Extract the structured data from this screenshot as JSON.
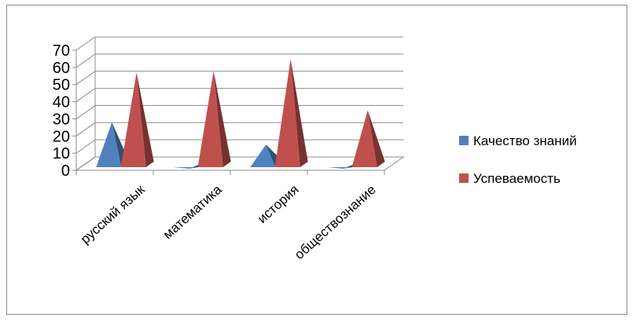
{
  "chart_data": {
    "type": "bar",
    "subtype": "3d-pyramid",
    "categories": [
      "русский язык",
      "математика",
      "история",
      "обществознание"
    ],
    "series": [
      {
        "name": "Качество знаний",
        "values": [
          28,
          1,
          15,
          1
        ],
        "color": "#4f81bd"
      },
      {
        "name": "Успеваемость",
        "values": [
          57,
          58,
          65,
          35
        ],
        "color": "#c0504d"
      }
    ],
    "y_ticks": [
      "0",
      "10",
      "20",
      "30",
      "40",
      "50",
      "60",
      "70"
    ],
    "ylim": [
      0,
      70
    ],
    "grid": true,
    "legend_position": "right"
  }
}
